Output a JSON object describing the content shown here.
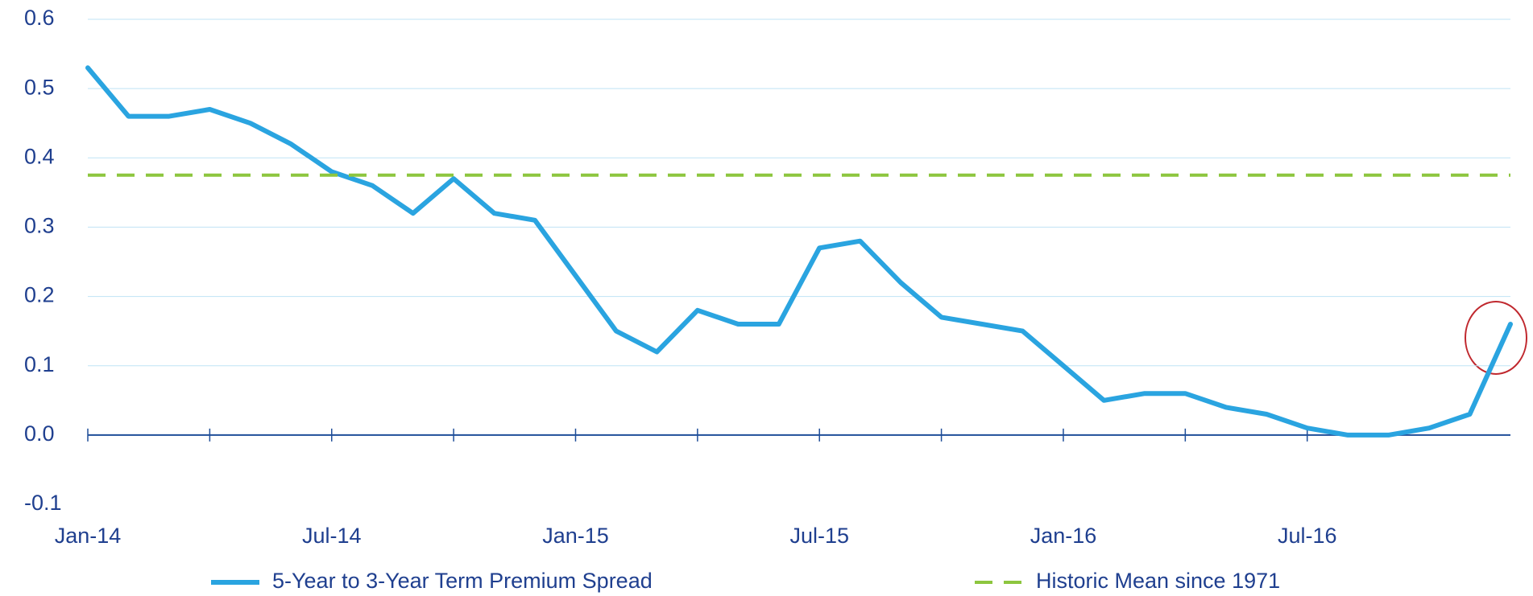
{
  "chart_data": {
    "type": "line",
    "x": [
      "Jan-14",
      "Feb-14",
      "Mar-14",
      "Apr-14",
      "May-14",
      "Jun-14",
      "Jul-14",
      "Aug-14",
      "Sep-14",
      "Oct-14",
      "Nov-14",
      "Dec-14",
      "Jan-15",
      "Feb-15",
      "Mar-15",
      "Apr-15",
      "May-15",
      "Jun-15",
      "Jul-15",
      "Aug-15",
      "Sep-15",
      "Oct-15",
      "Nov-15",
      "Dec-15",
      "Jan-16",
      "Feb-16",
      "Mar-16",
      "Apr-16",
      "May-16",
      "Jun-16",
      "Jul-16",
      "Aug-16",
      "Sep-16",
      "Oct-16",
      "Nov-16",
      "Dec-16"
    ],
    "series": [
      {
        "name": "5-Year to 3-Year Term Premium Spread",
        "color": "#2aa4e0",
        "values": [
          0.53,
          0.46,
          0.46,
          0.47,
          0.45,
          0.42,
          0.38,
          0.36,
          0.32,
          0.37,
          0.32,
          0.31,
          0.23,
          0.15,
          0.12,
          0.18,
          0.16,
          0.16,
          0.27,
          0.28,
          0.22,
          0.17,
          0.16,
          0.15,
          0.1,
          0.05,
          0.06,
          0.06,
          0.04,
          0.03,
          0.01,
          0.0,
          0.0,
          0.01,
          0.03,
          0.16
        ]
      },
      {
        "name": "Historic Mean since 1971",
        "color": "#8dc63f",
        "dashed": true,
        "values": [
          0.375,
          0.375,
          0.375,
          0.375,
          0.375,
          0.375,
          0.375,
          0.375,
          0.375,
          0.375,
          0.375,
          0.375,
          0.375,
          0.375,
          0.375,
          0.375,
          0.375,
          0.375,
          0.375,
          0.375,
          0.375,
          0.375,
          0.375,
          0.375,
          0.375,
          0.375,
          0.375,
          0.375,
          0.375,
          0.375,
          0.375,
          0.375,
          0.375,
          0.375,
          0.375,
          0.375
        ]
      }
    ],
    "xticks": [
      "Jan-14",
      "Jul-14",
      "Jan-15",
      "Jul-15",
      "Jan-16",
      "Jul-16"
    ],
    "ylim": [
      -0.1,
      0.6
    ],
    "yticks": [
      -0.1,
      {
        "value": 0,
        "label": "0.0"
      },
      0.1,
      0.2,
      0.3,
      0.4,
      0.5,
      0.6
    ],
    "grid": true,
    "legend": "bottom"
  }
}
